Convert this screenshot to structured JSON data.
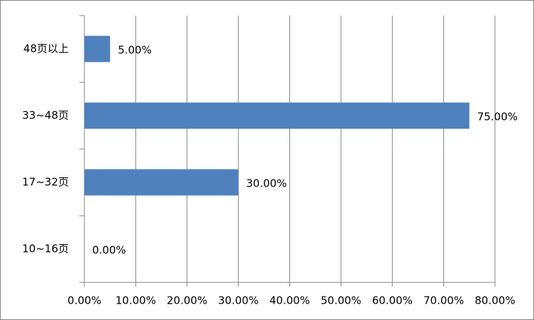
{
  "chart_data": {
    "type": "bar",
    "orientation": "horizontal",
    "categories": [
      "48页以上",
      "33~48页",
      "17~32页",
      "10~16页"
    ],
    "values": [
      5,
      75,
      30,
      0
    ],
    "value_labels": [
      "5.00%",
      "75.00%",
      "30.00%",
      "0.00%"
    ],
    "color": "#4f81bd",
    "xlim": [
      0,
      80
    ],
    "xticks": [
      {
        "value": 0,
        "label": "0.00%"
      },
      {
        "value": 10,
        "label": "10.00%"
      },
      {
        "value": 20,
        "label": "20.00%"
      },
      {
        "value": 30,
        "label": "30.00%"
      },
      {
        "value": 40,
        "label": "40.00%"
      },
      {
        "value": 50,
        "label": "50.00%"
      },
      {
        "value": 60,
        "label": "60.00%"
      },
      {
        "value": 70,
        "label": "70.00%"
      },
      {
        "value": 80,
        "label": "80.00%"
      }
    ],
    "grid": true
  }
}
